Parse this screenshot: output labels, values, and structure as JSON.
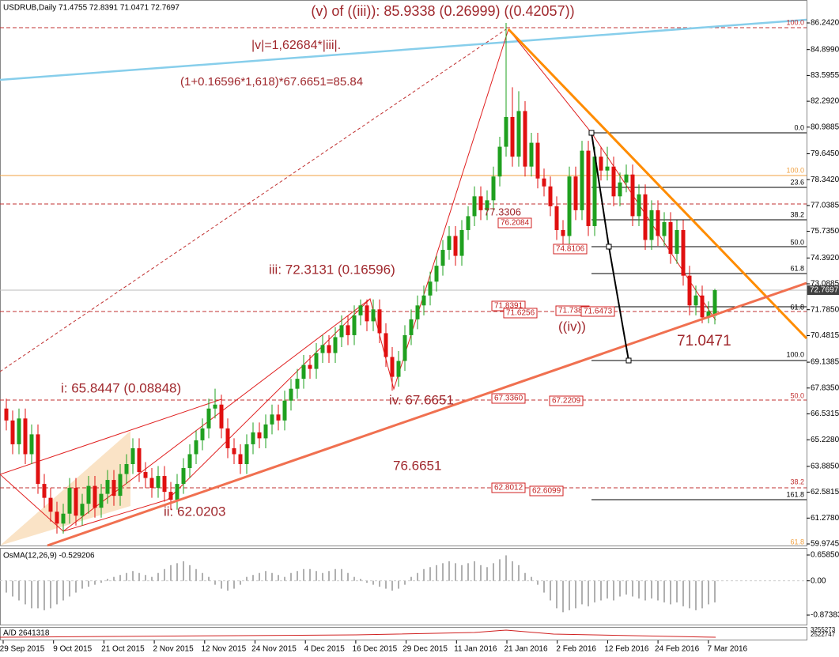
{
  "header": "USDRUB,Daily  71.4755 72.8391 71.0471 72.7697",
  "chart_data": {
    "type": "candlestick",
    "ylim": [
      59.9745,
      86.242
    ],
    "yticks": [
      {
        "value": 86.242,
        "label": "86.2420"
      },
      {
        "value": 84.899,
        "label": "84.8990"
      },
      83.5955,
      {
        "value": 82.292,
        "label": "82.2920"
      },
      80.9885,
      {
        "value": 79.645,
        "label": "79.6450"
      },
      {
        "value": 78.342,
        "label": "78.3420"
      },
      77.0385,
      {
        "value": 75.735,
        "label": "75.7350"
      },
      {
        "value": 74.392,
        "label": "74.3920"
      },
      73.0885,
      {
        "value": 71.785,
        "label": "71.7850"
      },
      70.4815,
      69.1385,
      {
        "value": 67.835,
        "label": "67.8350"
      },
      66.5315,
      {
        "value": 65.228,
        "label": "65.2280"
      },
      {
        "value": 63.885,
        "label": "63.8850"
      },
      62.5815,
      {
        "value": 61.278,
        "label": "61.2780"
      },
      59.9745
    ],
    "current_price": 72.7697,
    "up_color": "#1fa01f",
    "down_color": "#e01010",
    "candles": [
      [
        66.8,
        67.3,
        65.7,
        66.2
      ],
      [
        66.2,
        66.7,
        64.5,
        65.0
      ],
      [
        65.0,
        66.8,
        64.5,
        66.3
      ],
      [
        66.3,
        66.8,
        64.0,
        64.5
      ],
      [
        64.5,
        66.0,
        64.0,
        65.5
      ],
      [
        65.5,
        66.0,
        62.5,
        63.0
      ],
      [
        63.0,
        63.5,
        61.8,
        62.3
      ],
      [
        62.3,
        62.8,
        61.1,
        61.6
      ],
      [
        61.6,
        62.1,
        60.5,
        61.0
      ],
      [
        61.0,
        62.0,
        60.5,
        61.5
      ],
      [
        61.5,
        63.3,
        61.0,
        62.8
      ],
      [
        62.8,
        63.3,
        60.9,
        61.4
      ],
      [
        61.4,
        62.5,
        60.9,
        62.0
      ],
      [
        62.0,
        63.4,
        61.5,
        62.9
      ],
      [
        62.9,
        63.4,
        61.3,
        61.8
      ],
      [
        61.8,
        63.0,
        61.3,
        62.5
      ],
      [
        62.5,
        63.7,
        62.0,
        63.2
      ],
      [
        63.2,
        63.7,
        61.9,
        62.4
      ],
      [
        62.4,
        64.0,
        61.9,
        63.5
      ],
      [
        63.5,
        64.5,
        63.0,
        64.0
      ],
      [
        64.0,
        65.3,
        63.5,
        64.8
      ],
      [
        64.8,
        65.3,
        63.1,
        63.6
      ],
      [
        63.6,
        64.1,
        62.8,
        63.3
      ],
      [
        63.3,
        63.8,
        62.3,
        62.8
      ],
      [
        62.8,
        63.9,
        62.3,
        63.4
      ],
      [
        63.4,
        63.9,
        62.1,
        62.6
      ],
      [
        62.6,
        63.1,
        61.7,
        62.2
      ],
      [
        62.2,
        63.5,
        61.7,
        63.0
      ],
      [
        63.0,
        64.3,
        62.5,
        63.8
      ],
      [
        63.8,
        65.0,
        63.3,
        64.5
      ],
      [
        64.5,
        65.7,
        64.0,
        65.2
      ],
      [
        65.2,
        66.3,
        64.7,
        65.8
      ],
      [
        65.8,
        67.3,
        65.3,
        66.8
      ],
      [
        66.8,
        67.8,
        66.3,
        67.0
      ],
      [
        67.0,
        67.5,
        65.3,
        65.8
      ],
      [
        65.8,
        66.3,
        64.3,
        64.8
      ],
      [
        64.8,
        65.3,
        64.0,
        64.5
      ],
      [
        64.5,
        65.0,
        63.5,
        64.0
      ],
      [
        64.0,
        65.5,
        63.5,
        65.0
      ],
      [
        65.0,
        66.1,
        64.5,
        65.6
      ],
      [
        65.6,
        66.1,
        64.8,
        65.3
      ],
      [
        65.3,
        66.5,
        64.8,
        66.0
      ],
      [
        66.0,
        67.0,
        65.5,
        66.5
      ],
      [
        66.5,
        67.0,
        65.7,
        66.2
      ],
      [
        66.2,
        67.7,
        65.7,
        67.2
      ],
      [
        67.2,
        68.3,
        66.7,
        67.8
      ],
      [
        67.8,
        68.8,
        67.3,
        68.3
      ],
      [
        68.3,
        69.5,
        67.8,
        69.0
      ],
      [
        69.0,
        69.5,
        68.3,
        68.8
      ],
      [
        68.8,
        70.1,
        68.3,
        69.6
      ],
      [
        69.6,
        70.5,
        69.1,
        70.0
      ],
      [
        70.0,
        70.5,
        69.1,
        69.6
      ],
      [
        69.6,
        70.9,
        69.1,
        70.4
      ],
      [
        70.4,
        71.5,
        69.9,
        71.0
      ],
      [
        71.0,
        71.5,
        70.0,
        70.5
      ],
      [
        70.5,
        72.0,
        70.0,
        71.5
      ],
      [
        71.5,
        72.3,
        71.0,
        72.0
      ],
      [
        72.0,
        72.3,
        70.7,
        71.2
      ],
      [
        71.2,
        72.3,
        70.7,
        71.8
      ],
      [
        71.8,
        72.3,
        70.1,
        70.6
      ],
      [
        70.6,
        71.1,
        68.9,
        69.4
      ],
      [
        69.4,
        69.9,
        67.7,
        68.4
      ],
      [
        68.4,
        69.7,
        67.9,
        69.2
      ],
      [
        69.2,
        71.0,
        68.7,
        70.5
      ],
      [
        70.5,
        71.8,
        70.0,
        71.3
      ],
      [
        71.3,
        72.5,
        70.8,
        72.0
      ],
      [
        72.0,
        73.0,
        71.5,
        72.5
      ],
      [
        72.5,
        73.7,
        72.0,
        73.2
      ],
      [
        73.2,
        74.5,
        72.7,
        74.0
      ],
      [
        74.0,
        75.3,
        73.5,
        74.8
      ],
      [
        74.8,
        76.0,
        74.3,
        75.5
      ],
      [
        75.5,
        76.0,
        74.0,
        74.5
      ],
      [
        74.5,
        76.3,
        74.0,
        75.8
      ],
      [
        75.8,
        77.0,
        75.3,
        76.5
      ],
      [
        76.5,
        78.0,
        76.0,
        77.5
      ],
      [
        77.5,
        78.0,
        76.3,
        76.8
      ],
      [
        76.8,
        77.8,
        76.3,
        77.3
      ],
      [
        77.3,
        79.0,
        76.8,
        78.5
      ],
      [
        78.5,
        80.5,
        78.0,
        80.0
      ],
      [
        80.0,
        86.24,
        79.5,
        81.5
      ],
      [
        81.5,
        83.0,
        79.0,
        79.5
      ],
      [
        79.5,
        82.8,
        79.0,
        81.8
      ],
      [
        81.8,
        82.3,
        78.5,
        79.0
      ],
      [
        79.0,
        80.7,
        78.5,
        80.2
      ],
      [
        80.2,
        80.7,
        77.9,
        78.4
      ],
      [
        78.4,
        78.9,
        77.5,
        78.0
      ],
      [
        78.0,
        78.5,
        76.5,
        77.0
      ],
      [
        77.0,
        77.5,
        75.3,
        75.8
      ],
      [
        75.8,
        76.3,
        75.0,
        75.5
      ],
      [
        75.5,
        79.0,
        75.0,
        78.5
      ],
      [
        78.5,
        79.0,
        76.3,
        76.8
      ],
      [
        76.8,
        80.3,
        76.3,
        79.8
      ],
      [
        79.8,
        80.3,
        75.5,
        76.0
      ],
      [
        76.0,
        80.0,
        75.5,
        79.5
      ],
      [
        79.5,
        80.0,
        78.3,
        78.8
      ],
      [
        78.8,
        80.0,
        78.3,
        79.0
      ],
      [
        79.0,
        79.5,
        77.0,
        77.5
      ],
      [
        77.5,
        78.7,
        77.0,
        78.2
      ],
      [
        78.2,
        79.1,
        77.7,
        78.6
      ],
      [
        78.6,
        79.1,
        76.0,
        76.5
      ],
      [
        76.5,
        78.1,
        76.0,
        77.6
      ],
      [
        77.6,
        78.1,
        74.8,
        75.3
      ],
      [
        75.3,
        77.3,
        74.8,
        76.8
      ],
      [
        76.8,
        77.3,
        75.0,
        75.5
      ],
      [
        75.5,
        76.7,
        75.0,
        76.2
      ],
      [
        76.2,
        76.7,
        74.1,
        74.6
      ],
      [
        74.6,
        76.3,
        74.1,
        75.8
      ],
      [
        75.8,
        76.3,
        73.0,
        73.5
      ],
      [
        73.5,
        74.0,
        71.5,
        72.0
      ],
      [
        72.0,
        73.0,
        71.5,
        72.5
      ],
      [
        72.5,
        73.0,
        71.1,
        71.4
      ],
      [
        71.4,
        72.2,
        71.1,
        71.7
      ],
      [
        71.4755,
        72.8391,
        71.0471,
        72.7697
      ]
    ]
  },
  "annotations": [
    "(v) of ((iii)): 85.9338 (0.26999) ((0.42057))",
    "|v|=1,62684*|iii|.",
    "(1+0.16596*1,618)*67.6651=85.84",
    "iii: 72.3131 (0.16596)",
    "i: 65.8447 (0.08848)",
    "iv. 67.6651",
    "76.6651",
    "ii: 62.0203",
    "((iv))",
    "71.0471",
    "77.3306"
  ],
  "price_boxes": [
    "76.2084",
    "74.8106",
    "71.8391",
    "71.6256",
    "71.7384",
    "71.6473",
    "67.3360",
    "67.2209",
    "62.8012",
    "62.6099"
  ],
  "fibo_labels": [
    "100.0",
    "100.0",
    "0.0",
    "23.6",
    "38.2",
    "50.0",
    "61.8",
    "61.8",
    "100.0",
    "50.0",
    "38.2",
    "161.8",
    "61.8"
  ],
  "osma": {
    "label": "OsMA(12,26,9) -0.529206",
    "ylim": [
      -0.87383,
      0.658505
    ],
    "yticks": [
      0.658505,
      {
        "value": 0,
        "label": "0.00"
      },
      -0.87383
    ],
    "values": [
      -0.3,
      -0.4,
      -0.5,
      -0.6,
      -0.7,
      -0.7,
      -0.75,
      -0.7,
      -0.6,
      -0.5,
      -0.4,
      -0.3,
      -0.2,
      -0.15,
      -0.1,
      -0.05,
      0.05,
      0.1,
      0.15,
      0.2,
      0.25,
      0.2,
      0.15,
      0.1,
      0.2,
      0.3,
      0.4,
      0.45,
      0.5,
      0.4,
      0.3,
      0.2,
      0.1,
      -0.1,
      -0.2,
      -0.25,
      -0.2,
      -0.1,
      0.1,
      0.15,
      0.2,
      0.25,
      0.2,
      0.15,
      0.1,
      0.2,
      0.25,
      0.3,
      0.3,
      0.25,
      0.2,
      0.25,
      0.3,
      0.3,
      0.2,
      0.1,
      0.05,
      -0.05,
      -0.1,
      -0.15,
      -0.2,
      -0.25,
      -0.2,
      -0.1,
      0.1,
      0.2,
      0.3,
      0.35,
      0.4,
      0.45,
      0.5,
      0.45,
      0.4,
      0.45,
      0.5,
      0.4,
      0.35,
      0.45,
      0.55,
      0.65,
      0.5,
      0.4,
      0.2,
      0.1,
      -0.1,
      -0.3,
      -0.5,
      -0.7,
      -0.8,
      -0.75,
      -0.7,
      -0.6,
      -0.65,
      -0.55,
      -0.5,
      -0.45,
      -0.5,
      -0.4,
      -0.35,
      -0.4,
      -0.45,
      -0.5,
      -0.45,
      -0.5,
      -0.55,
      -0.6,
      -0.55,
      -0.65,
      -0.7,
      -0.75,
      -0.7,
      -0.6,
      -0.55
    ]
  },
  "ad": {
    "label": "A/D 2641318",
    "yticks": [
      3255273,
      2522747
    ]
  },
  "time_labels": [
    "29 Sep 2015",
    "9 Oct 2015",
    "21 Oct 2015",
    "2 Nov 2015",
    "12 Nov 2015",
    "24 Nov 2015",
    "4 Dec 2015",
    "16 Dec 2015",
    "29 Dec 2015",
    "11 Jan 2016",
    "21 Jan 2016",
    "2 Feb 2016",
    "12 Feb 2016",
    "24 Feb 2016",
    "7 Mar 2016"
  ]
}
